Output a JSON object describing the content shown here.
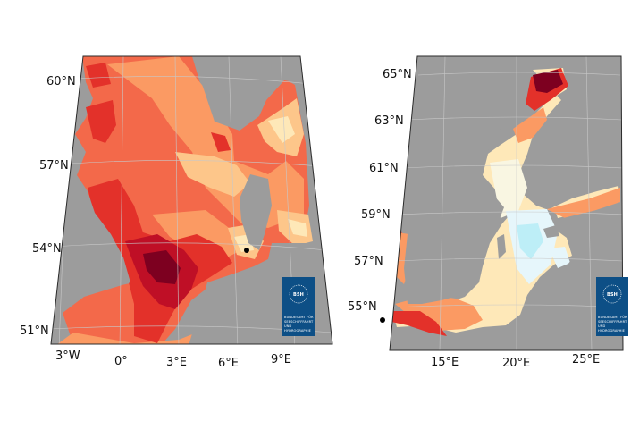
{
  "colors": {
    "land": "#9c9c9c",
    "border": "#2b2b2b",
    "grid": "#c8c8c8",
    "logo_bg": "#0d4f86",
    "marker": "#000000",
    "scale": [
      "#7d0020",
      "#bf0f26",
      "#e3312a",
      "#f3694a",
      "#fb9a63",
      "#fdc68a",
      "#fee8b8",
      "#f9f6e2",
      "#e6f6fb",
      "#bdeef7"
    ]
  },
  "left_map": {
    "lat_labels": [
      "60°N",
      "57°N",
      "54°N",
      "51°N"
    ],
    "lon_labels": [
      "3°W",
      "0°",
      "3°E",
      "6°E",
      "9°E"
    ],
    "marker": "station-dot"
  },
  "right_map": {
    "lat_labels": [
      "65°N",
      "63°N",
      "61°N",
      "59°N",
      "57°N",
      "55°N"
    ],
    "lon_labels": [
      "15°E",
      "20°E",
      "25°E"
    ],
    "marker": "station-dot"
  },
  "logo": {
    "abbr": "BSH",
    "lines": [
      "BUNDESAMT FÜR",
      "SEESCHIFFFAHRT",
      "UND",
      "HYDROGRAPHIE"
    ]
  }
}
